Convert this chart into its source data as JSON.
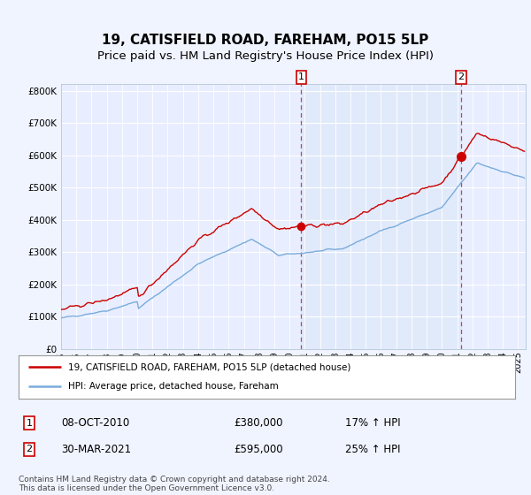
{
  "title": "19, CATISFIELD ROAD, FAREHAM, PO15 5LP",
  "subtitle": "Price paid vs. HM Land Registry's House Price Index (HPI)",
  "ylim": [
    0,
    820000
  ],
  "yticks": [
    0,
    100000,
    200000,
    300000,
    400000,
    500000,
    600000,
    700000,
    800000
  ],
  "ytick_labels": [
    "£0",
    "£100K",
    "£200K",
    "£300K",
    "£400K",
    "£500K",
    "£600K",
    "£700K",
    "£800K"
  ],
  "xlim_start": 1995.0,
  "xlim_end": 2025.5,
  "sale1_x": 2010.77,
  "sale1_y": 380000,
  "sale2_x": 2021.25,
  "sale2_y": 595000,
  "sale1_label": "08-OCT-2010",
  "sale1_price": "£380,000",
  "sale1_hpi": "17% ↑ HPI",
  "sale2_label": "30-MAR-2021",
  "sale2_price": "£595,000",
  "sale2_hpi": "25% ↑ HPI",
  "legend_line1": "19, CATISFIELD ROAD, FAREHAM, PO15 5LP (detached house)",
  "legend_line2": "HPI: Average price, detached house, Fareham",
  "footnote1": "Contains HM Land Registry data © Crown copyright and database right 2024.",
  "footnote2": "This data is licensed under the Open Government Licence v3.0.",
  "bg_color": "#f0f4ff",
  "plot_bg": "#e8eeff",
  "shade_color": "#dce8f8",
  "grid_color": "#ffffff",
  "red_line_color": "#cc0000",
  "blue_line_color": "#7aacdc",
  "vline_color": "#cc4444",
  "title_fontsize": 11,
  "subtitle_fontsize": 9.5
}
